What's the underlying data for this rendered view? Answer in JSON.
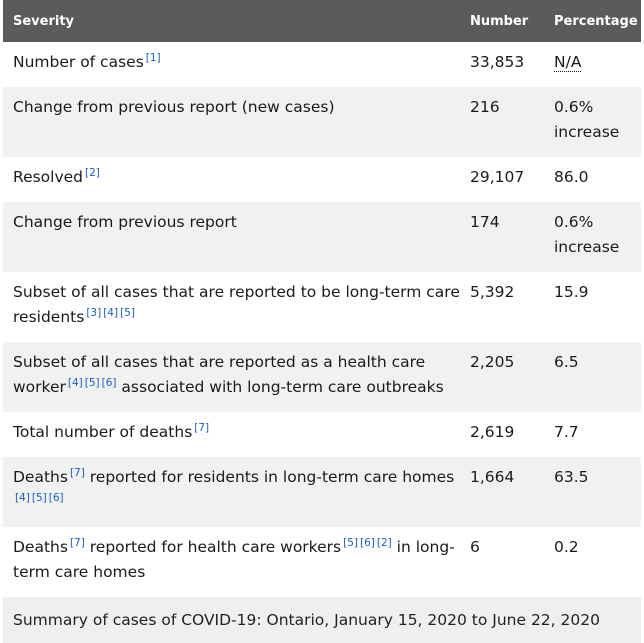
{
  "table": {
    "headers": [
      "Severity",
      "Number",
      "Percentage"
    ],
    "rows": [
      {
        "label_parts": [
          {
            "t": "Number of cases"
          },
          {
            "fn": "[1]"
          }
        ],
        "number": "33,853",
        "percentage": "N/A",
        "percentage_abbr": true
      },
      {
        "label_parts": [
          {
            "t": "Change from previous report (new cases)"
          }
        ],
        "number": "216",
        "percentage": "0.6% increase"
      },
      {
        "label_parts": [
          {
            "t": "Resolved"
          },
          {
            "fn": "[2]"
          }
        ],
        "number": "29,107",
        "percentage": "86.0"
      },
      {
        "label_parts": [
          {
            "t": "Change from previous report"
          }
        ],
        "number": "174",
        "percentage": "0.6% increase"
      },
      {
        "label_parts": [
          {
            "t": "Subset of all cases that are reported to be long-term care residents"
          },
          {
            "fn": "[3]"
          },
          {
            "fn": "[4]"
          },
          {
            "fn": "[5]"
          }
        ],
        "number": "5,392",
        "percentage": "15.9"
      },
      {
        "label_parts": [
          {
            "t": "Subset of all cases that are reported as a health care worker"
          },
          {
            "fn": "[4]"
          },
          {
            "fn": "[5]"
          },
          {
            "fn": "[6]"
          },
          {
            "t": " associated with long-term care outbreaks"
          }
        ],
        "number": "2,205",
        "percentage": "6.5"
      },
      {
        "label_parts": [
          {
            "t": "Total number of deaths"
          },
          {
            "fn": "[7]"
          }
        ],
        "number": "2,619",
        "percentage": "7.7"
      },
      {
        "label_parts": [
          {
            "t": "Deaths"
          },
          {
            "fn": "[7]"
          },
          {
            "t": " reported for residents in long-term care homes "
          },
          {
            "fn": "[4]"
          },
          {
            "fn": "[5]"
          },
          {
            "fn": "[6]"
          }
        ],
        "number": "1,664",
        "percentage": "63.5"
      },
      {
        "label_parts": [
          {
            "t": "Deaths"
          },
          {
            "fn": "[7]"
          },
          {
            "t": " reported for health care workers"
          },
          {
            "fn": "[5]"
          },
          {
            "fn": "[6]"
          },
          {
            "fn": "[2]"
          },
          {
            "t": " in long-term care homes"
          }
        ],
        "number": "6",
        "percentage": "0.2"
      }
    ]
  },
  "caption": "Summary of cases of COVID-19: Ontario, January 15, 2020 to June 22, 2020",
  "colors": {
    "header_bg": "#5b5b5b",
    "stripe_bg": "#f1f1f1",
    "footnote_link": "#1a5dc9"
  }
}
